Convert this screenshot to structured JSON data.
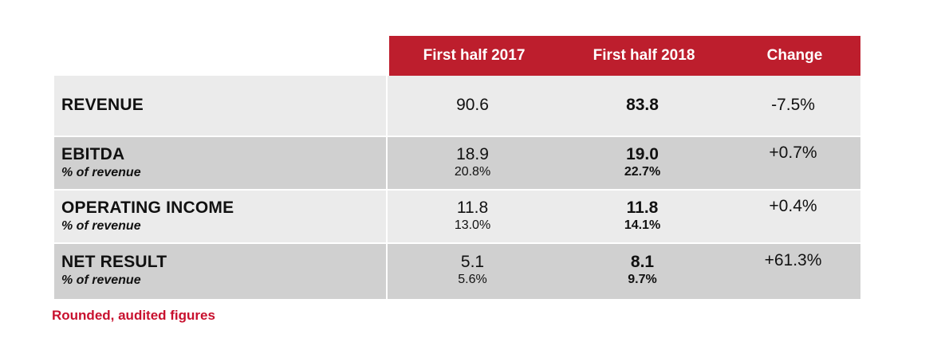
{
  "header": {
    "col1": "First half 2017",
    "col2": "First half 2018",
    "col3": "Change"
  },
  "rows": [
    {
      "label": "REVENUE",
      "sublabel": "",
      "h1_2017": "90.6",
      "h1_2017_pct": "",
      "h1_2018": "83.8",
      "h1_2018_pct": "",
      "change": "-7.5%"
    },
    {
      "label": "EBITDA",
      "sublabel": "% of revenue",
      "h1_2017": "18.9",
      "h1_2017_pct": "20.8%",
      "h1_2018": "19.0",
      "h1_2018_pct": "22.7%",
      "change": "+0.7%"
    },
    {
      "label": "OPERATING INCOME",
      "sublabel": "% of revenue",
      "h1_2017": "11.8",
      "h1_2017_pct": "13.0%",
      "h1_2018": "11.8",
      "h1_2018_pct": "14.1%",
      "change": "+0.4%"
    },
    {
      "label": "NET RESULT",
      "sublabel": "% of revenue",
      "h1_2017": "5.1",
      "h1_2017_pct": "5.6%",
      "h1_2018": "8.1",
      "h1_2018_pct": "9.7%",
      "change": "+61.3%"
    }
  ],
  "footnote": "Rounded, audited figures",
  "colors": {
    "header_bg": "#bd1e2d",
    "row_light": "#ebebeb",
    "row_dark": "#d0d0d0",
    "footnote": "#c8102e"
  }
}
